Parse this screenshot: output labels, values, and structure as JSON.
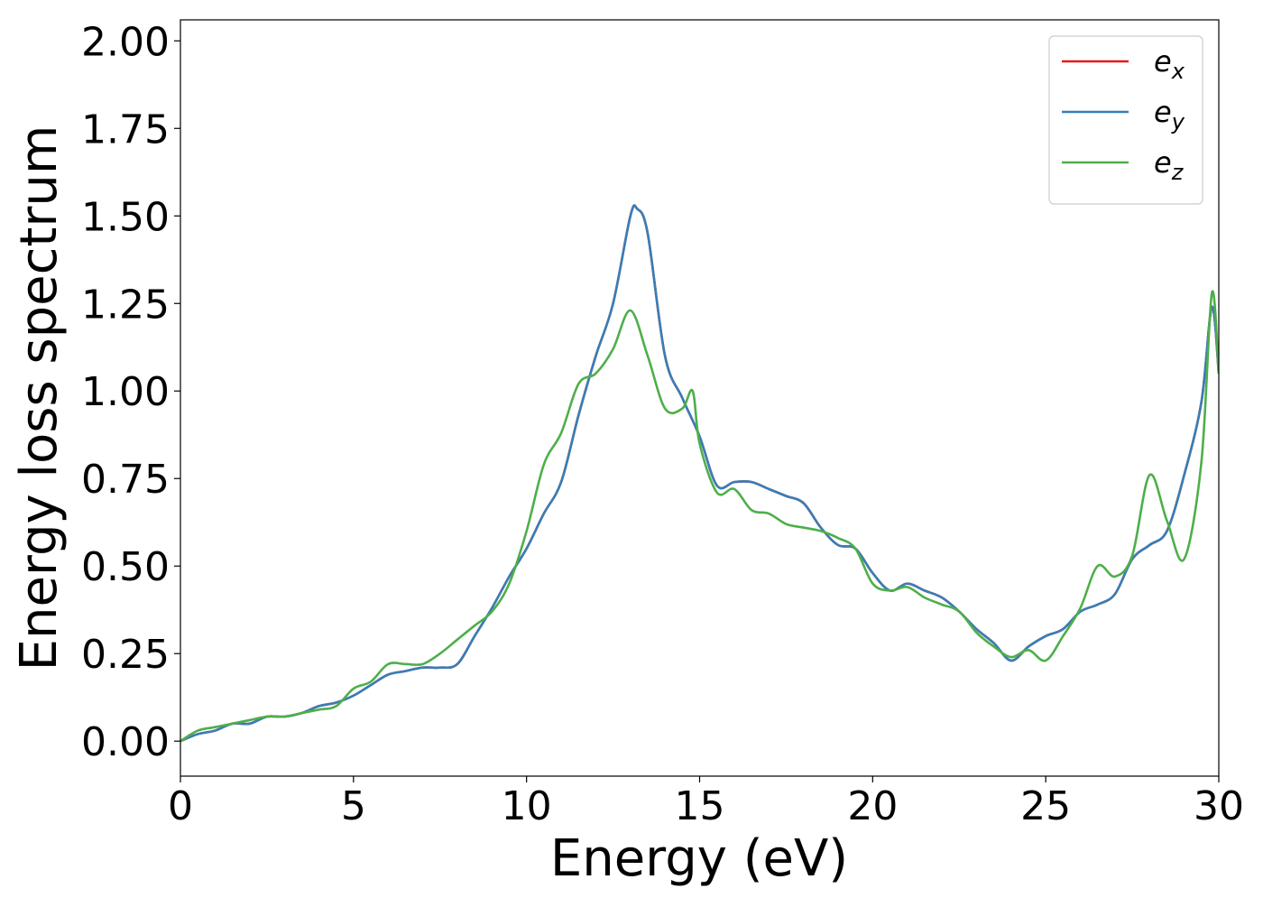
{
  "chart_data": {
    "type": "line",
    "title": "",
    "xlabel": "Energy (eV)",
    "ylabel": "Energy loss spectrum",
    "xlim": [
      0,
      30
    ],
    "ylim": [
      -0.1,
      2.06
    ],
    "xticks": [
      0,
      5,
      10,
      15,
      20,
      25,
      30
    ],
    "xtick_labels": [
      "0",
      "5",
      "10",
      "15",
      "20",
      "25",
      "30"
    ],
    "yticks": [
      0,
      0.25,
      0.5,
      0.75,
      1.0,
      1.25,
      1.5,
      1.75,
      2.0
    ],
    "ytick_labels": [
      "0.00",
      "0.25",
      "0.50",
      "0.75",
      "1.00",
      "1.25",
      "1.50",
      "1.75",
      "2.00"
    ],
    "grid": false,
    "legend_position": "top-right",
    "series": [
      {
        "name": "e_x",
        "legend_base": "e",
        "legend_sub": "x",
        "color": "#e41a1c",
        "x": [
          0,
          0.5,
          1,
          1.5,
          2,
          2.5,
          3,
          3.5,
          4,
          4.5,
          5,
          5.5,
          6,
          6.5,
          7,
          7.5,
          8,
          8.5,
          9,
          9.5,
          10,
          10.5,
          11,
          11.5,
          12,
          12.5,
          13,
          13.2,
          13.5,
          14,
          14.5,
          15,
          15.5,
          16,
          16.5,
          17,
          17.5,
          18,
          18.5,
          19,
          19.5,
          20,
          20.5,
          21,
          21.5,
          22,
          22.5,
          23,
          23.5,
          24,
          24.5,
          25,
          25.5,
          26,
          26.5,
          27,
          27.5,
          28,
          28.5,
          29,
          29.5,
          29.8,
          30
        ],
        "y": [
          0.0,
          0.02,
          0.03,
          0.05,
          0.05,
          0.07,
          0.07,
          0.08,
          0.1,
          0.11,
          0.13,
          0.16,
          0.19,
          0.2,
          0.21,
          0.21,
          0.22,
          0.3,
          0.38,
          0.47,
          0.55,
          0.65,
          0.74,
          0.93,
          1.1,
          1.25,
          1.5,
          1.52,
          1.45,
          1.1,
          0.98,
          0.87,
          0.73,
          0.74,
          0.74,
          0.72,
          0.7,
          0.68,
          0.61,
          0.56,
          0.55,
          0.48,
          0.43,
          0.45,
          0.43,
          0.41,
          0.37,
          0.32,
          0.28,
          0.23,
          0.27,
          0.3,
          0.32,
          0.37,
          0.39,
          0.42,
          0.52,
          0.56,
          0.6,
          0.76,
          0.97,
          1.24,
          1.05
        ]
      },
      {
        "name": "e_y",
        "legend_base": "e",
        "legend_sub": "y",
        "color": "#377eb8",
        "x": [
          0,
          0.5,
          1,
          1.5,
          2,
          2.5,
          3,
          3.5,
          4,
          4.5,
          5,
          5.5,
          6,
          6.5,
          7,
          7.5,
          8,
          8.5,
          9,
          9.5,
          10,
          10.5,
          11,
          11.5,
          12,
          12.5,
          13,
          13.2,
          13.5,
          14,
          14.5,
          15,
          15.5,
          16,
          16.5,
          17,
          17.5,
          18,
          18.5,
          19,
          19.5,
          20,
          20.5,
          21,
          21.5,
          22,
          22.5,
          23,
          23.5,
          24,
          24.5,
          25,
          25.5,
          26,
          26.5,
          27,
          27.5,
          28,
          28.5,
          29,
          29.5,
          29.8,
          30
        ],
        "y": [
          0.0,
          0.02,
          0.03,
          0.05,
          0.05,
          0.07,
          0.07,
          0.08,
          0.1,
          0.11,
          0.13,
          0.16,
          0.19,
          0.2,
          0.21,
          0.21,
          0.22,
          0.3,
          0.38,
          0.47,
          0.55,
          0.65,
          0.74,
          0.93,
          1.1,
          1.25,
          1.5,
          1.52,
          1.45,
          1.1,
          0.98,
          0.87,
          0.73,
          0.74,
          0.74,
          0.72,
          0.7,
          0.68,
          0.61,
          0.56,
          0.55,
          0.48,
          0.43,
          0.45,
          0.43,
          0.41,
          0.37,
          0.32,
          0.28,
          0.23,
          0.27,
          0.3,
          0.32,
          0.37,
          0.39,
          0.42,
          0.52,
          0.56,
          0.6,
          0.76,
          0.97,
          1.24,
          1.05
        ]
      },
      {
        "name": "e_z",
        "legend_base": "e",
        "legend_sub": "z",
        "color": "#4daf4a",
        "x": [
          0,
          0.5,
          1,
          1.5,
          2,
          2.5,
          3,
          3.5,
          4,
          4.5,
          5,
          5.5,
          6,
          6.5,
          7,
          7.5,
          8,
          8.5,
          9,
          9.5,
          10,
          10.5,
          11,
          11.5,
          12,
          12.5,
          13,
          13.5,
          14,
          14.5,
          14.8,
          15,
          15.5,
          16,
          16.5,
          17,
          17.5,
          18,
          18.5,
          19,
          19.5,
          20,
          20.5,
          21,
          21.5,
          22,
          22.5,
          23,
          23.5,
          24,
          24.5,
          25,
          25.5,
          26,
          26.5,
          27,
          27.5,
          28,
          28.5,
          29,
          29.5,
          29.8,
          30
        ],
        "y": [
          0.0,
          0.03,
          0.04,
          0.05,
          0.06,
          0.07,
          0.07,
          0.08,
          0.09,
          0.1,
          0.15,
          0.17,
          0.22,
          0.22,
          0.22,
          0.25,
          0.29,
          0.33,
          0.37,
          0.45,
          0.6,
          0.79,
          0.88,
          1.02,
          1.05,
          1.12,
          1.23,
          1.1,
          0.95,
          0.95,
          1.0,
          0.85,
          0.71,
          0.72,
          0.66,
          0.65,
          0.62,
          0.61,
          0.6,
          0.58,
          0.55,
          0.45,
          0.43,
          0.44,
          0.41,
          0.39,
          0.37,
          0.31,
          0.27,
          0.24,
          0.26,
          0.23,
          0.3,
          0.38,
          0.5,
          0.47,
          0.53,
          0.76,
          0.63,
          0.52,
          0.8,
          1.28,
          1.05
        ]
      }
    ]
  }
}
